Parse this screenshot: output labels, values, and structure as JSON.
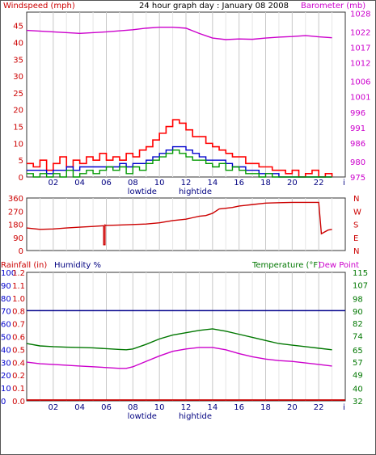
{
  "header": {
    "title": "24 hour graph day : January 08 2008",
    "left_label": "Windspeed (mph)",
    "right_label": "Barometer (mb)"
  },
  "bottom_header": {
    "rain_label": "Rainfall (in)",
    "humidity_label": "Humidity %",
    "temp_label": "Temperature (°F)",
    "dew_label": "Dew Point"
  },
  "x_axis": {
    "hour_ticks": [
      "02",
      "04",
      "06",
      "08",
      "10",
      "12",
      "14",
      "16",
      "18",
      "20",
      "22"
    ],
    "end_tick": "i",
    "tide_labels": [
      {
        "text": "lowtide",
        "hour": 8.7
      },
      {
        "text": "hightide",
        "hour": 12.7
      }
    ]
  },
  "colors": {
    "wind": "#ff0000",
    "gust": "#ff0000",
    "barometer": "#cc00cc",
    "direction": "#cc0000",
    "humidity": "#00008b",
    "temperature": "#007700",
    "dewpoint": "#cc00cc",
    "rain": "#cc0000",
    "grid": "#c8c8c8"
  },
  "chart_data": [
    {
      "type": "line",
      "title": "24 hour graph day : January 08 2008",
      "x_unit": "hour",
      "xlim": [
        0,
        24
      ],
      "y_left": {
        "label": "Windspeed (mph)",
        "ticks": [
          0,
          5,
          10,
          15,
          20,
          25,
          30,
          35,
          40,
          45
        ],
        "lim": [
          0,
          49
        ]
      },
      "y_right": {
        "label": "Barometer (mb)",
        "ticks": [
          975,
          980,
          986,
          991,
          996,
          1001,
          1006,
          1012,
          1017,
          1022,
          1028
        ],
        "lim": [
          975,
          1028.4
        ]
      },
      "grid": true,
      "series": [
        {
          "role": "gust",
          "axis": "left",
          "x": [
            0,
            0.5,
            1,
            1.5,
            2,
            2.5,
            3,
            3.5,
            4,
            4.5,
            5,
            5.5,
            6,
            6.5,
            7,
            7.5,
            8,
            8.5,
            9,
            9.5,
            10,
            10.5,
            11,
            11.5,
            12,
            12.5,
            13,
            13.5,
            14,
            14.5,
            15,
            15.5,
            16,
            16.5,
            17,
            17.5,
            18,
            18.5,
            19,
            19.5,
            20,
            20.5,
            21,
            21.5,
            22,
            22.5,
            23
          ],
          "values": [
            4,
            3,
            5,
            2,
            4,
            6,
            3,
            5,
            4,
            6,
            5,
            7,
            5,
            6,
            5,
            7,
            6,
            8,
            9,
            11,
            13,
            15,
            17,
            16,
            14,
            12,
            12,
            10,
            9,
            8,
            7,
            6,
            6,
            4,
            4,
            3,
            3,
            2,
            2,
            1,
            2,
            0,
            1,
            2,
            0,
            1,
            0
          ]
        },
        {
          "role": "wind",
          "axis": "left",
          "x": [
            0,
            0.5,
            1,
            1.5,
            2,
            2.5,
            3,
            3.5,
            4,
            4.5,
            5,
            5.5,
            6,
            6.5,
            7,
            7.5,
            8,
            8.5,
            9,
            9.5,
            10,
            10.5,
            11,
            11.5,
            12,
            12.5,
            13,
            13.5,
            14,
            14.5,
            15,
            15.5,
            16,
            16.5,
            17,
            17.5,
            18,
            18.5,
            19,
            19.5,
            20,
            20.5,
            21,
            21.5,
            22,
            22.5,
            23
          ],
          "values": [
            2,
            2,
            2,
            1,
            2,
            2,
            3,
            2,
            3,
            3,
            3,
            3,
            3,
            3,
            4,
            3,
            4,
            4,
            5,
            6,
            7,
            8,
            9,
            9,
            8,
            7,
            6,
            5,
            5,
            5,
            4,
            3,
            3,
            2,
            2,
            1,
            1,
            1,
            0,
            0,
            0,
            0,
            0,
            0,
            0,
            0,
            0
          ]
        },
        {
          "role": "wind-green",
          "axis": "left",
          "x": [
            0,
            0.5,
            1,
            1.5,
            2,
            2.5,
            3,
            3.5,
            4,
            4.5,
            5,
            5.5,
            6,
            6.5,
            7,
            7.5,
            8,
            8.5,
            9,
            9.5,
            10,
            10.5,
            11,
            11.5,
            12,
            12.5,
            13,
            13.5,
            14,
            14.5,
            15,
            15.5,
            16,
            16.5,
            17,
            17.5,
            18,
            18.5,
            19,
            19.5,
            20,
            20.5,
            21,
            21.5,
            22,
            22.5,
            23
          ],
          "values": [
            1,
            0,
            1,
            0,
            1,
            0,
            2,
            0,
            1,
            2,
            1,
            2,
            3,
            2,
            3,
            1,
            3,
            2,
            4,
            5,
            6,
            7,
            8,
            7,
            6,
            5,
            5,
            4,
            3,
            4,
            2,
            3,
            2,
            1,
            1,
            0,
            1,
            0,
            0,
            0,
            0,
            0,
            0,
            0,
            0,
            0,
            0
          ]
        },
        {
          "role": "barometer",
          "axis": "right",
          "x": [
            0,
            2,
            4,
            6,
            8,
            9,
            10,
            11,
            12,
            13,
            14,
            15,
            16,
            17,
            18,
            19,
            20,
            21,
            22,
            23
          ],
          "values": [
            1022.5,
            1022,
            1021.5,
            1022,
            1022.7,
            1023.2,
            1023.5,
            1023.5,
            1023.2,
            1021.5,
            1020,
            1019.5,
            1019.7,
            1019.6,
            1020,
            1020.3,
            1020.5,
            1020.8,
            1020.4,
            1020.1
          ]
        }
      ]
    },
    {
      "type": "line",
      "x_unit": "hour",
      "xlim": [
        0,
        24
      ],
      "y_left": {
        "ticks": [
          0,
          90,
          180,
          270,
          360
        ],
        "lim": [
          0,
          360
        ]
      },
      "y_right_labels": [
        "N",
        "W",
        "S",
        "E",
        "N"
      ],
      "series": [
        {
          "role": "direction",
          "x": [
            0,
            0.5,
            1,
            2,
            3,
            4,
            5,
            5.8,
            5.8,
            5.9,
            5.9,
            6,
            7,
            8,
            9,
            10,
            11,
            12,
            12.5,
            13,
            13.5,
            14,
            14.5,
            15,
            15.5,
            16,
            16.5,
            17,
            18,
            19,
            20,
            21,
            22,
            22.2,
            22.2,
            22.7,
            23
          ],
          "values": [
            155,
            150,
            145,
            148,
            155,
            160,
            165,
            170,
            40,
            40,
            175,
            172,
            175,
            178,
            182,
            190,
            205,
            215,
            225,
            235,
            240,
            255,
            285,
            290,
            295,
            305,
            310,
            315,
            325,
            328,
            330,
            330,
            330,
            115,
            115,
            140,
            145
          ]
        }
      ]
    },
    {
      "type": "line",
      "x_unit": "hour",
      "xlim": [
        0,
        24
      ],
      "y_left_humidity": {
        "label": "Humidity %",
        "ticks": [
          0,
          10,
          20,
          30,
          40,
          50,
          60,
          70,
          80,
          90,
          100
        ],
        "lim": [
          0,
          100
        ]
      },
      "y_left_rain": {
        "label": "Rainfall (in)",
        "ticks": [
          0.0,
          0.1,
          0.2,
          0.4,
          0.5,
          0.6,
          0.7,
          0.8,
          1.0,
          1.1,
          1.2
        ],
        "lim": [
          0,
          1.2
        ]
      },
      "y_right": {
        "label": "Temperature (°F)",
        "ticks": [
          32,
          40,
          49,
          57,
          65,
          74,
          82,
          90,
          98,
          107,
          115
        ],
        "lim": [
          32,
          115
        ]
      },
      "series": [
        {
          "role": "humidity",
          "x": [
            0,
            24
          ],
          "values": [
            70.2,
            70.2
          ]
        },
        {
          "role": "rain",
          "x": [
            0,
            24
          ],
          "values": [
            0,
            0
          ]
        },
        {
          "role": "temperature",
          "x": [
            0,
            1,
            2,
            3,
            4,
            5,
            6,
            7,
            7.5,
            8,
            9,
            10,
            11,
            12,
            13,
            14,
            15,
            16,
            17,
            18,
            19,
            20,
            21,
            22,
            23
          ],
          "values": [
            69,
            67.5,
            67,
            66.7,
            66.5,
            66.2,
            65.7,
            65.2,
            65,
            65.5,
            68.5,
            72,
            74.5,
            76,
            77.5,
            78.5,
            77,
            75,
            73,
            71,
            69,
            68,
            67,
            66,
            65
          ]
        },
        {
          "role": "dewpoint",
          "x": [
            0,
            1,
            2,
            3,
            4,
            5,
            6,
            7,
            7.5,
            8,
            9,
            10,
            11,
            12,
            13,
            14,
            15,
            16,
            17,
            18,
            19,
            20,
            21,
            22,
            23
          ],
          "values": [
            57,
            56,
            55.5,
            55,
            54.5,
            54,
            53.5,
            53,
            53,
            54,
            57.5,
            61,
            64,
            65.5,
            66.5,
            66.5,
            65,
            62.5,
            60.5,
            59,
            58,
            57.5,
            56.5,
            55.5,
            54.5
          ]
        }
      ]
    }
  ]
}
